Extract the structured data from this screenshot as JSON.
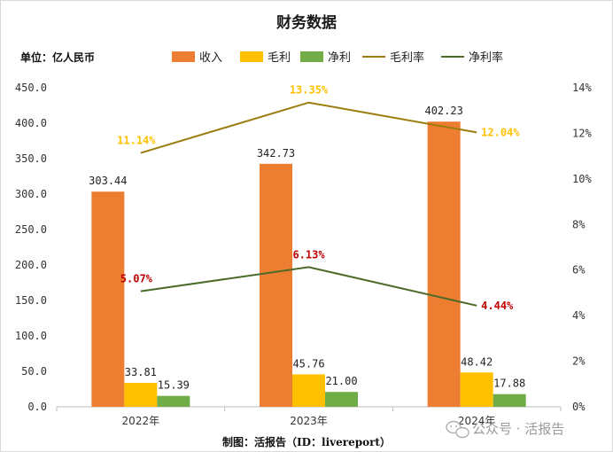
{
  "chart_data": {
    "type": "bar",
    "title": "财务数据",
    "unit_label": "单位：亿人民币",
    "categories": [
      "2022年",
      "2023年",
      "2024年"
    ],
    "series": [
      {
        "name": "收入",
        "kind": "bar",
        "axis": "left",
        "color": "#ed7d31",
        "values": [
          303.44,
          342.73,
          402.23
        ],
        "labels": [
          "303.44",
          "342.73",
          "402.23"
        ]
      },
      {
        "name": "毛利",
        "kind": "bar",
        "axis": "left",
        "color": "#ffc000",
        "values": [
          33.81,
          45.76,
          48.42
        ],
        "labels": [
          "33.81",
          "45.76",
          "48.42"
        ]
      },
      {
        "name": "净利",
        "kind": "bar",
        "axis": "left",
        "color": "#70ad47",
        "values": [
          15.39,
          21.0,
          17.88
        ],
        "labels": [
          "15.39",
          "21.00",
          "17.88"
        ]
      },
      {
        "name": "毛利率",
        "kind": "line",
        "axis": "right",
        "color": "#9c7c0e",
        "label_color": "#ffc000",
        "values": [
          11.14,
          13.35,
          12.04
        ],
        "labels": [
          "11.14%",
          "13.35%",
          "12.04%"
        ]
      },
      {
        "name": "净利率",
        "kind": "line",
        "axis": "right",
        "color": "#4b6b2a",
        "label_color": "#c00000",
        "values": [
          5.07,
          6.13,
          4.44
        ],
        "labels": [
          "5.07%",
          "6.13%",
          "4.44%"
        ]
      }
    ],
    "y_left": {
      "min": 0,
      "max": 450,
      "step": 50,
      "tick_labels": [
        "0.0",
        "50.0",
        "100.0",
        "150.0",
        "200.0",
        "250.0",
        "300.0",
        "350.0",
        "400.0",
        "450.0"
      ]
    },
    "y_right": {
      "min": 0,
      "max": 14,
      "step": 2,
      "tick_labels": [
        "0%",
        "2%",
        "4%",
        "6%",
        "8%",
        "10%",
        "12%",
        "14%"
      ]
    },
    "legend_position": "top",
    "grid": false
  },
  "credit": "制图：活报告（ID：livereport）",
  "watermark": "公众号 · 活报告",
  "watermark_icon": "wechat-icon"
}
